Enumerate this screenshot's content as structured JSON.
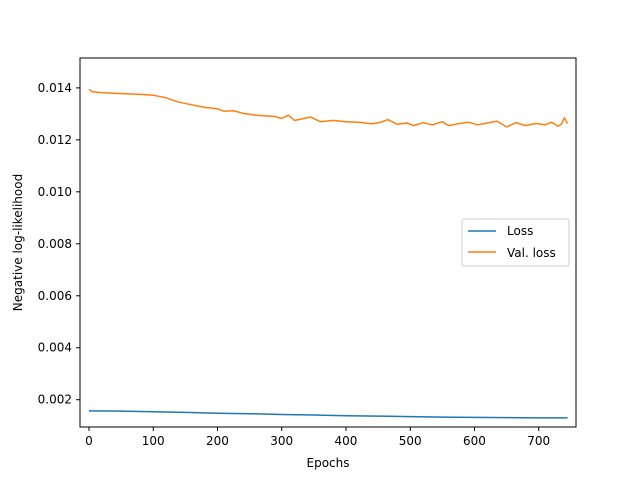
{
  "chart_data": {
    "type": "line",
    "xlabel": "Epochs",
    "ylabel": "Negative log-likelihood",
    "xlim": [
      -14,
      758
    ],
    "ylim": [
      0.00095,
      0.01515
    ],
    "xticks": [
      0,
      100,
      200,
      300,
      400,
      500,
      600,
      700
    ],
    "xtick_labels": [
      "0",
      "100",
      "200",
      "300",
      "400",
      "500",
      "600",
      "700"
    ],
    "yticks": [
      0.002,
      0.004,
      0.006,
      0.008,
      0.01,
      0.012,
      0.014
    ],
    "ytick_labels": [
      "0.002",
      "0.004",
      "0.006",
      "0.008",
      "0.010",
      "0.012",
      "0.014"
    ],
    "grid": false,
    "legend_position": "center-right",
    "series": [
      {
        "name": "Loss",
        "color": "#1f77b4",
        "x": [
          0,
          50,
          100,
          150,
          200,
          250,
          300,
          350,
          400,
          450,
          500,
          550,
          600,
          650,
          700,
          745
        ],
        "y": [
          0.00157,
          0.00156,
          0.00154,
          0.00151,
          0.00148,
          0.00146,
          0.00143,
          0.00141,
          0.00138,
          0.00137,
          0.00135,
          0.00133,
          0.00132,
          0.00131,
          0.0013,
          0.0013
        ]
      },
      {
        "name": "Val. loss",
        "color": "#ff7f0e",
        "x": [
          0,
          5,
          20,
          50,
          80,
          100,
          120,
          140,
          160,
          180,
          200,
          210,
          225,
          240,
          260,
          275,
          290,
          300,
          310,
          320,
          330,
          345,
          360,
          380,
          400,
          420,
          440,
          455,
          465,
          480,
          495,
          505,
          520,
          535,
          550,
          560,
          575,
          590,
          605,
          620,
          635,
          650,
          665,
          680,
          695,
          710,
          720,
          730,
          735,
          740,
          745
        ],
        "y": [
          0.01395,
          0.01385,
          0.01382,
          0.01378,
          0.01375,
          0.01372,
          0.01362,
          0.01345,
          0.01335,
          0.01325,
          0.0132,
          0.0131,
          0.01312,
          0.01302,
          0.01295,
          0.01292,
          0.0129,
          0.01282,
          0.01295,
          0.01275,
          0.0128,
          0.01288,
          0.0127,
          0.01275,
          0.0127,
          0.01268,
          0.01262,
          0.01268,
          0.01278,
          0.0126,
          0.01265,
          0.01255,
          0.01266,
          0.01258,
          0.0127,
          0.01255,
          0.01262,
          0.01268,
          0.01258,
          0.01265,
          0.01272,
          0.0125,
          0.01266,
          0.01255,
          0.01263,
          0.01258,
          0.01268,
          0.01252,
          0.0126,
          0.01285,
          0.01262
        ]
      }
    ]
  }
}
